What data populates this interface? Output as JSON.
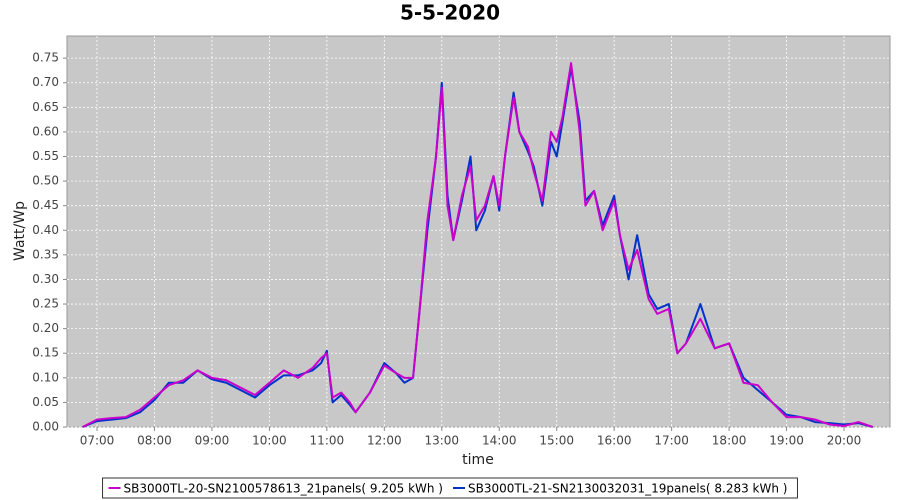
{
  "chart_data": {
    "type": "line",
    "title": "5-5-2020",
    "x_label": "time",
    "y_label": "Watt/Wp",
    "grid": true,
    "legend": "bottom",
    "x": [
      6.75,
      7.0,
      7.25,
      7.5,
      7.75,
      8.0,
      8.25,
      8.5,
      8.75,
      9.0,
      9.25,
      9.5,
      9.75,
      10.0,
      10.25,
      10.5,
      10.75,
      10.9,
      11.0,
      11.1,
      11.25,
      11.4,
      11.5,
      11.75,
      12.0,
      12.2,
      12.35,
      12.5,
      12.6,
      12.75,
      12.9,
      13.0,
      13.1,
      13.2,
      13.35,
      13.5,
      13.6,
      13.75,
      13.9,
      14.0,
      14.1,
      14.25,
      14.35,
      14.5,
      14.6,
      14.75,
      14.9,
      15.0,
      15.1,
      15.25,
      15.4,
      15.5,
      15.65,
      15.8,
      16.0,
      16.1,
      16.25,
      16.4,
      16.6,
      16.75,
      16.95,
      17.1,
      17.25,
      17.5,
      17.75,
      18.0,
      18.25,
      18.5,
      18.75,
      19.0,
      19.25,
      19.5,
      19.75,
      20.0,
      20.25,
      20.5
    ],
    "series": [
      {
        "name": "SB3000TL-20-SN2100578613_21panels( 9.205 kWh )",
        "color": "#cc00cc",
        "values": [
          0,
          0.015,
          0.018,
          0.02,
          0.035,
          0.06,
          0.085,
          0.095,
          0.115,
          0.1,
          0.095,
          0.08,
          0.065,
          0.09,
          0.115,
          0.1,
          0.12,
          0.14,
          0.15,
          0.06,
          0.07,
          0.05,
          0.03,
          0.07,
          0.125,
          0.11,
          0.1,
          0.1,
          0.22,
          0.42,
          0.55,
          0.69,
          0.45,
          0.38,
          0.47,
          0.53,
          0.42,
          0.45,
          0.51,
          0.45,
          0.55,
          0.67,
          0.6,
          0.57,
          0.52,
          0.46,
          0.6,
          0.58,
          0.63,
          0.74,
          0.6,
          0.45,
          0.48,
          0.4,
          0.46,
          0.39,
          0.32,
          0.36,
          0.26,
          0.23,
          0.24,
          0.15,
          0.17,
          0.22,
          0.16,
          0.17,
          0.09,
          0.085,
          0.05,
          0.02,
          0.02,
          0.015,
          0.005,
          0.002,
          0.01,
          0.0
        ]
      },
      {
        "name": "SB3000TL-21-SN2130032031_19panels( 8.283 kWh )",
        "color": "#0033cc",
        "values": [
          0,
          0.012,
          0.015,
          0.018,
          0.03,
          0.055,
          0.09,
          0.09,
          0.115,
          0.097,
          0.09,
          0.075,
          0.06,
          0.085,
          0.105,
          0.105,
          0.115,
          0.13,
          0.155,
          0.05,
          0.065,
          0.045,
          0.03,
          0.07,
          0.13,
          0.11,
          0.09,
          0.1,
          0.22,
          0.4,
          0.55,
          0.7,
          0.47,
          0.38,
          0.46,
          0.55,
          0.4,
          0.44,
          0.51,
          0.44,
          0.55,
          0.68,
          0.6,
          0.56,
          0.53,
          0.45,
          0.58,
          0.55,
          0.62,
          0.73,
          0.62,
          0.46,
          0.48,
          0.41,
          0.47,
          0.39,
          0.3,
          0.39,
          0.27,
          0.24,
          0.25,
          0.15,
          0.17,
          0.25,
          0.16,
          0.17,
          0.1,
          0.075,
          0.05,
          0.025,
          0.02,
          0.01,
          0.008,
          0.005,
          0.008,
          0.0
        ]
      }
    ],
    "xlim": [
      6.478,
      20.8
    ],
    "xticks": [
      {
        "value": 7,
        "label": "07:00"
      },
      {
        "value": 8,
        "label": "08:00"
      },
      {
        "value": 9,
        "label": "09:00"
      },
      {
        "value": 10,
        "label": "10:00"
      },
      {
        "value": 11,
        "label": "11:00"
      },
      {
        "value": 12,
        "label": "12:00"
      },
      {
        "value": 13,
        "label": "13:00"
      },
      {
        "value": 14,
        "label": "14:00"
      },
      {
        "value": 15,
        "label": "15:00"
      },
      {
        "value": 16,
        "label": "16:00"
      },
      {
        "value": 17,
        "label": "17:00"
      },
      {
        "value": 18,
        "label": "18:00"
      },
      {
        "value": 19,
        "label": "19:00"
      },
      {
        "value": 20,
        "label": "20:00"
      }
    ],
    "ylim": [
      0,
      0.795
    ],
    "yticks": [
      {
        "value": 0,
        "label": "0.00"
      },
      0.05,
      {
        "value": 0.1,
        "label": "0.10"
      },
      0.15,
      {
        "value": 0.2,
        "label": "0.20"
      },
      0.25,
      {
        "value": 0.3,
        "label": "0.30"
      },
      0.35,
      {
        "value": 0.4,
        "label": "0.40"
      },
      0.45,
      {
        "value": 0.5,
        "label": "0.50"
      },
      0.55,
      {
        "value": 0.6,
        "label": "0.60"
      },
      0.65,
      {
        "value": 0.7,
        "label": "0.70"
      },
      0.75
    ]
  }
}
